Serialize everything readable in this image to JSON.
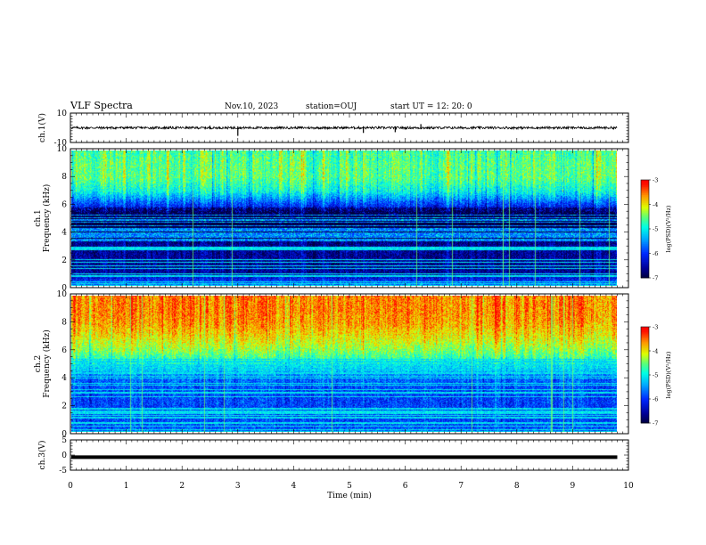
{
  "header": {
    "title": "VLF Spectra",
    "date": "Nov.10, 2023",
    "station": "station=OUJ",
    "start": "start UT =  12: 20: 0"
  },
  "colors": {
    "axes": "#000000",
    "background": "#ffffff",
    "colormap": [
      "#000000",
      "#00007f",
      "#0000ff",
      "#007fff",
      "#00ffff",
      "#7fff7f",
      "#ffff00",
      "#ff7f00",
      "#ff0000",
      "#ffffff"
    ]
  },
  "chart_data": [
    {
      "type": "line",
      "panel": "waveform-ch1",
      "ylabel": "ch.1(V)",
      "ylim": [
        -10,
        10
      ],
      "yticks": [
        "10",
        "-10"
      ],
      "xlim": [
        0,
        9.8
      ],
      "baseline": 0,
      "spikes": [
        {
          "x": 2.5,
          "min": -1.0,
          "max": 1.5
        },
        {
          "x": 3.0,
          "min": -5.5,
          "max": 1.0
        },
        {
          "x": 5.25,
          "min": -3.5,
          "max": 1.0
        },
        {
          "x": 5.82,
          "min": -3.0,
          "max": 1.0
        },
        {
          "x": 6.28,
          "min": -1.0,
          "max": 2.5
        }
      ]
    },
    {
      "type": "heatmap",
      "panel": "spectrogram-ch1",
      "ylabel_top": "ch.1",
      "ylabel": "Frequency (kHz)",
      "ylim": [
        0,
        10
      ],
      "yticks": [
        "0",
        "2",
        "4",
        "6",
        "8",
        "10"
      ],
      "xlim": [
        0,
        9.8
      ],
      "colorbar_label": "log(PSD)(V²/Hz)",
      "colorbar_range": [
        -7,
        -3
      ],
      "colorbar_ticks": [
        "-3",
        "-4",
        "-5",
        "-6",
        "-7"
      ],
      "profile_by_freq_khz": {
        "freq": [
          0,
          1,
          2,
          3,
          4,
          5,
          6,
          7,
          8,
          9,
          10
        ],
        "log_psd": [
          -5.6,
          -6.6,
          -6.6,
          -6.6,
          -6.9,
          -6.9,
          -6.0,
          -5.0,
          -4.6,
          -4.6,
          -4.7
        ]
      }
    },
    {
      "type": "heatmap",
      "panel": "spectrogram-ch2",
      "ylabel_top": "ch.2",
      "ylabel": "Frequency (kHz)",
      "ylim": [
        0,
        10
      ],
      "yticks": [
        "0",
        "2",
        "4",
        "6",
        "8",
        "10"
      ],
      "xlim": [
        0,
        9.8
      ],
      "colorbar_label": "log(PSD)(V²/Hz)",
      "colorbar_range": [
        -7,
        -3
      ],
      "colorbar_ticks": [
        "-3",
        "-4",
        "-5",
        "-6",
        "-7"
      ],
      "profile_by_freq_khz": {
        "freq": [
          0,
          1,
          2,
          3,
          4,
          5,
          6,
          7,
          8,
          9,
          10
        ],
        "log_psd": [
          -5.8,
          -5.9,
          -5.9,
          -5.9,
          -5.7,
          -5.0,
          -4.4,
          -4.0,
          -3.7,
          -3.6,
          -3.6
        ]
      }
    },
    {
      "type": "line",
      "panel": "waveform-ch3",
      "ylabel": "ch.3(V)",
      "ylim": [
        -5,
        5
      ],
      "yticks": [
        "5",
        "0",
        "-5"
      ],
      "xlim": [
        0,
        9.8
      ],
      "baseline": -0.7,
      "xlabel": "Time (min)",
      "xticks": [
        "0",
        "1",
        "2",
        "3",
        "4",
        "5",
        "6",
        "7",
        "8",
        "9",
        "10"
      ],
      "xrange": [
        0,
        10
      ]
    }
  ]
}
